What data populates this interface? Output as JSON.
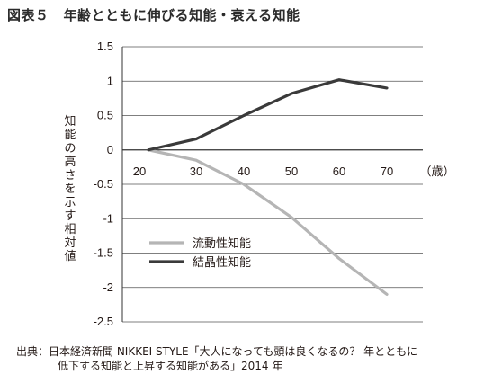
{
  "figure": {
    "number_label": "図表５",
    "title_text": "年齢とともに伸びる知能・衰える知能"
  },
  "source_line1": "出典：日本経済新聞 NIKKEI STYLE「大人になっても頭は良くなるの？ 年とともに",
  "source_line2": "低下する知能と上昇する知能がある」2014 年",
  "chart_data": {
    "type": "line",
    "title": "年齢とともに伸びる知能・衰える知能",
    "xlabel": "",
    "x_unit": "（歳）",
    "ylabel": "知能の高さを示す相対値",
    "x": [
      20,
      30,
      40,
      50,
      60,
      70
    ],
    "ylim": [
      -2.5,
      1.5
    ],
    "yticks": [
      "1.5",
      "1",
      "0.5",
      "0",
      "-0.5",
      "-1",
      "-1.5",
      "-2",
      "-2.5"
    ],
    "ytick_values": [
      1.5,
      1,
      0.5,
      0,
      -0.5,
      -1,
      -1.5,
      -2,
      -2.5
    ],
    "grid": true,
    "legend_position": "lower-left",
    "series": [
      {
        "name": "流動性知能",
        "color": "#b5b5b5",
        "values": [
          0,
          -0.15,
          -0.5,
          -0.98,
          -1.58,
          -2.1
        ]
      },
      {
        "name": "結晶性知能",
        "color": "#3a3a3a",
        "values": [
          0,
          0.16,
          0.5,
          0.82,
          1.02,
          0.9
        ]
      }
    ]
  }
}
